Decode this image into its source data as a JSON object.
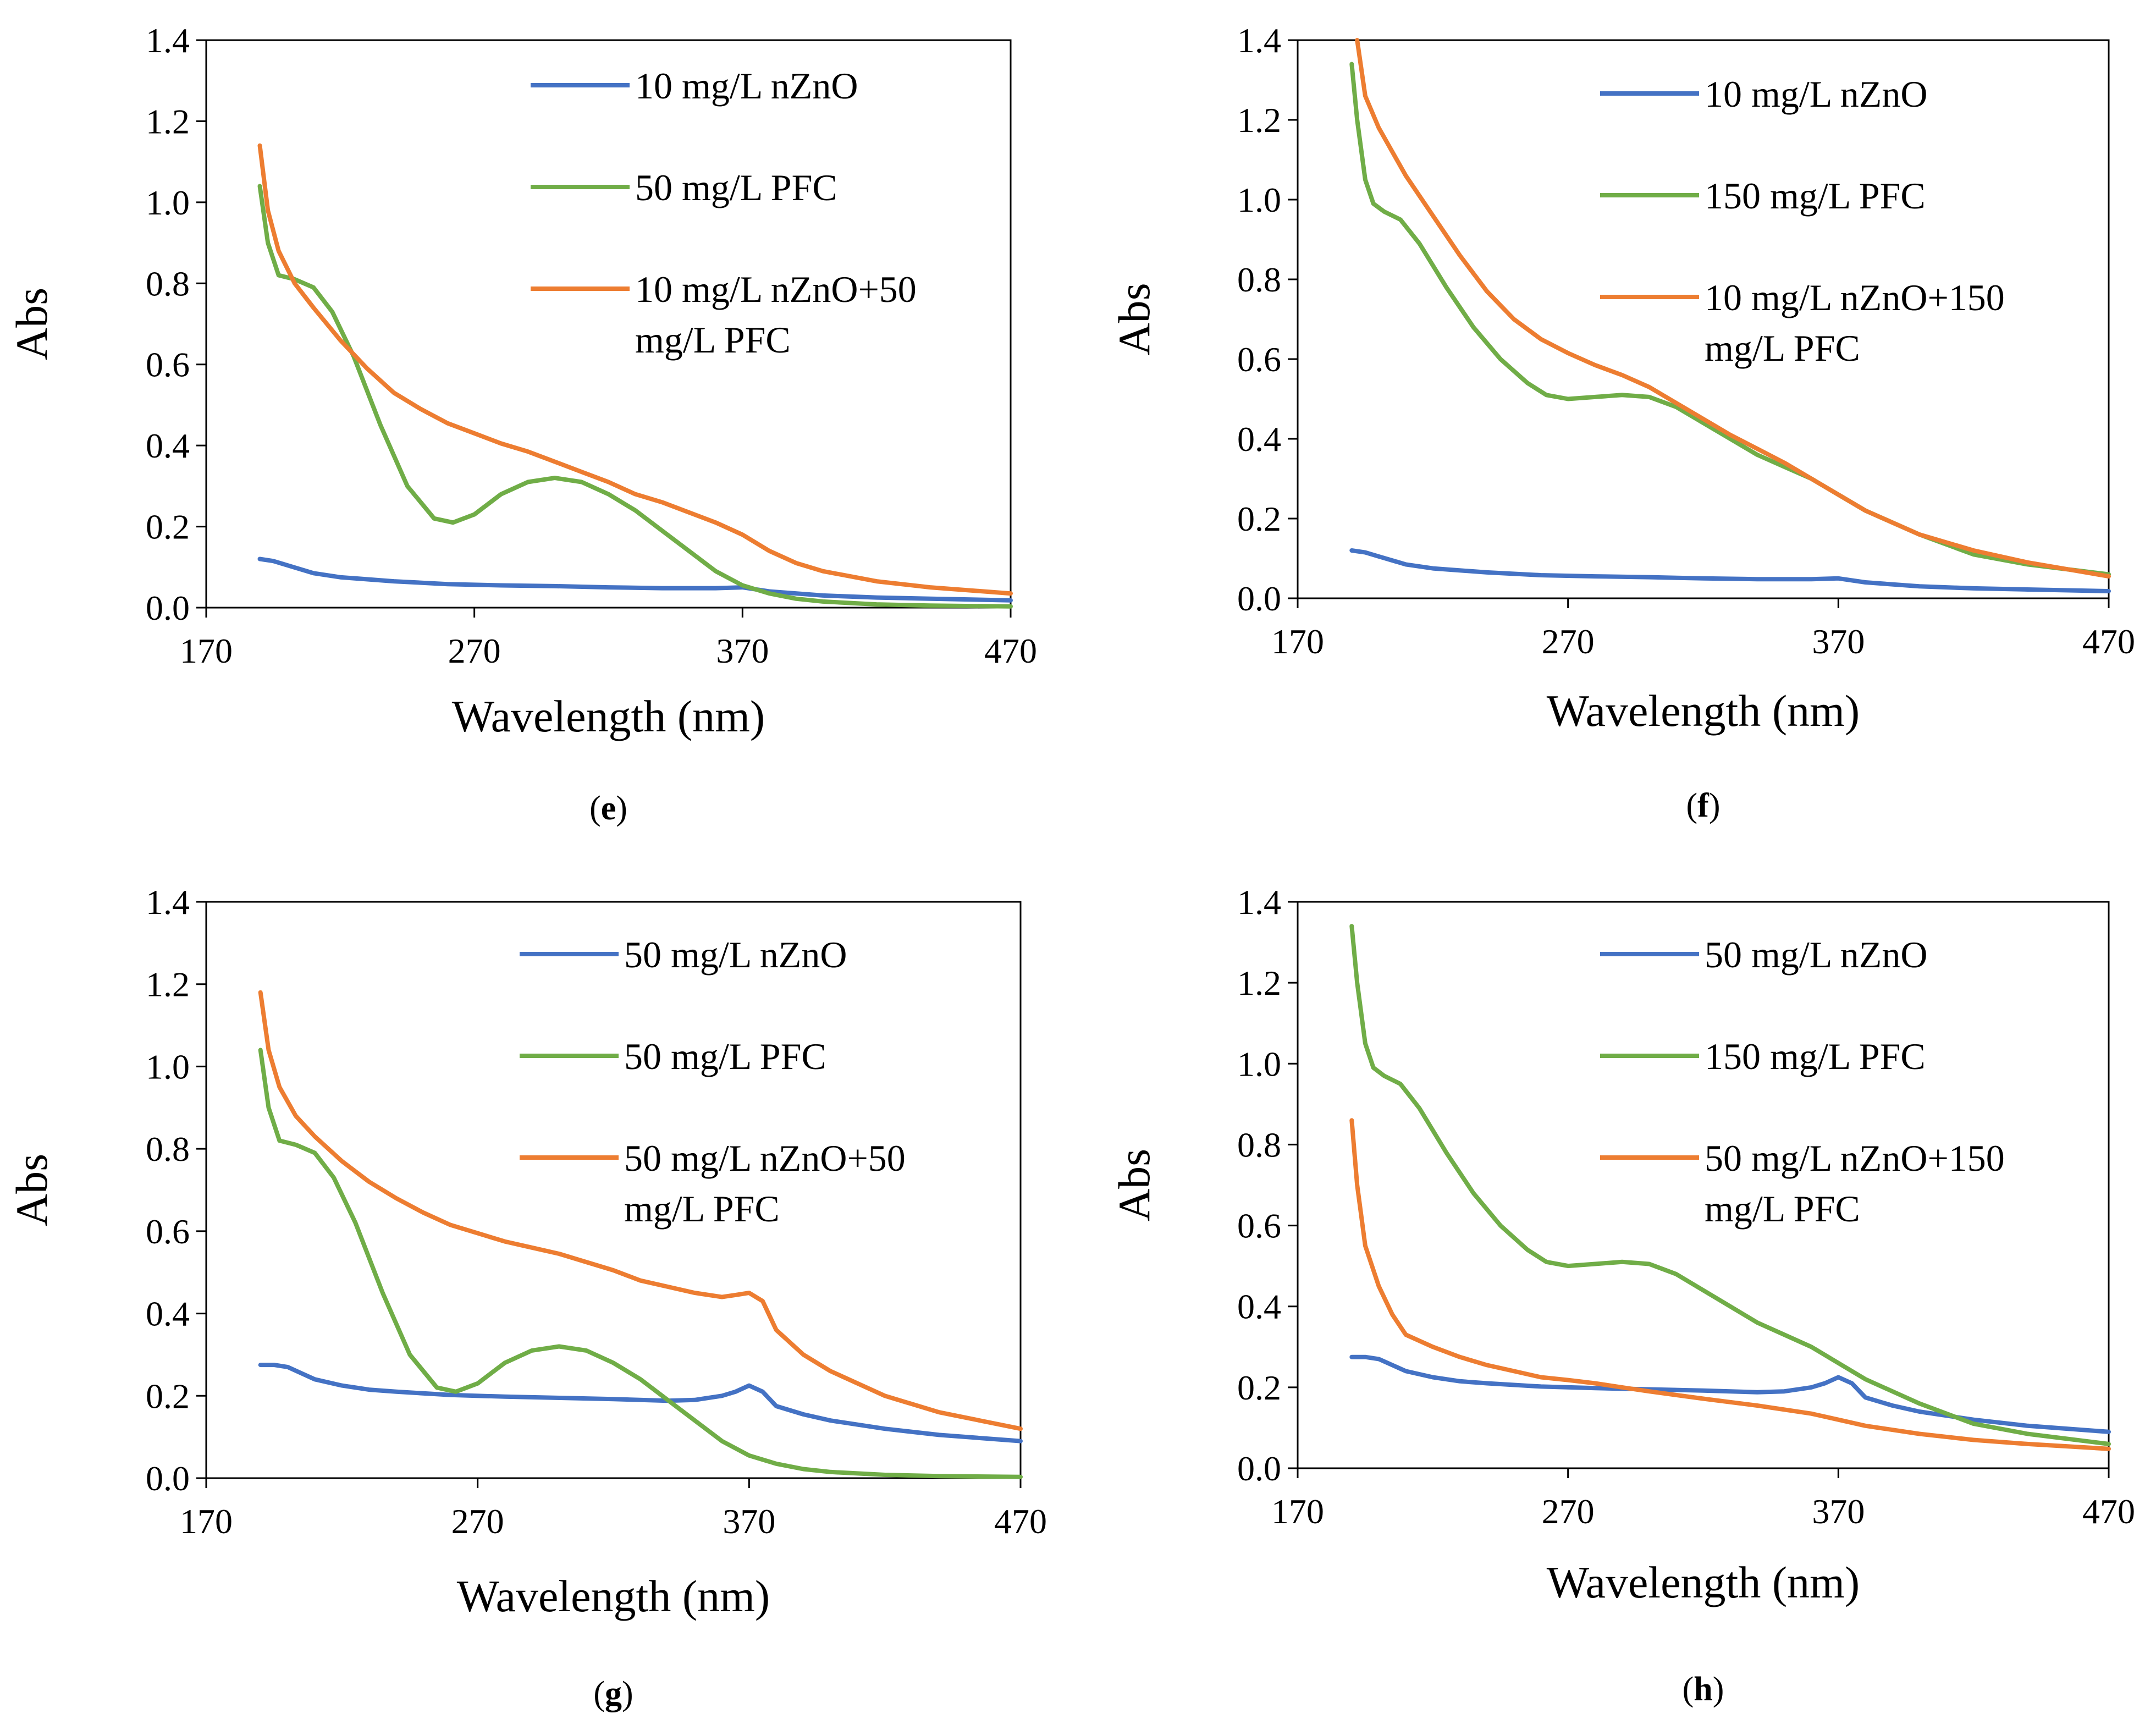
{
  "colors": {
    "blue": "#4472C4",
    "green": "#70AD47",
    "orange": "#ED7D31",
    "axis": "#000000"
  },
  "chart_data": [
    {
      "type": "line",
      "caption": "e",
      "xlabel": "Wavelength (nm)",
      "ylabel": "Abs",
      "xlim": [
        170,
        470
      ],
      "ylim": [
        0,
        1.4
      ],
      "xticks": [
        "170",
        "270",
        "370",
        "470"
      ],
      "yticks": [
        "0.0",
        "0.2",
        "0.4",
        "0.6",
        "0.8",
        "1.0",
        "1.2",
        "1.4"
      ],
      "legend_position": "top-right",
      "series": [
        {
          "name": "10 mg/L nZnO",
          "color": "#4472C4",
          "x": [
            190,
            195,
            200,
            210,
            220,
            240,
            260,
            280,
            300,
            320,
            340,
            360,
            370,
            380,
            400,
            420,
            440,
            470
          ],
          "y": [
            0.12,
            0.115,
            0.105,
            0.085,
            0.075,
            0.065,
            0.058,
            0.055,
            0.053,
            0.05,
            0.048,
            0.048,
            0.05,
            0.04,
            0.03,
            0.025,
            0.022,
            0.018
          ]
        },
        {
          "name": "50 mg/L PFC",
          "color": "#70AD47",
          "x": [
            190,
            193,
            197,
            203,
            210,
            217,
            225,
            235,
            245,
            255,
            262,
            270,
            280,
            290,
            300,
            310,
            320,
            330,
            340,
            350,
            360,
            370,
            380,
            390,
            400,
            420,
            440,
            470
          ],
          "y": [
            1.04,
            0.9,
            0.82,
            0.81,
            0.79,
            0.73,
            0.62,
            0.45,
            0.3,
            0.22,
            0.21,
            0.23,
            0.28,
            0.31,
            0.32,
            0.31,
            0.28,
            0.24,
            0.19,
            0.14,
            0.09,
            0.055,
            0.035,
            0.022,
            0.015,
            0.008,
            0.005,
            0.003
          ]
        },
        {
          "name": "10 mg/L nZnO+50 mg/L PFC",
          "color": "#ED7D31",
          "x": [
            190,
            193,
            197,
            203,
            210,
            220,
            230,
            240,
            250,
            260,
            270,
            280,
            290,
            300,
            310,
            320,
            330,
            340,
            350,
            360,
            370,
            380,
            390,
            400,
            420,
            440,
            470
          ],
          "y": [
            1.14,
            0.98,
            0.88,
            0.8,
            0.74,
            0.66,
            0.59,
            0.53,
            0.49,
            0.455,
            0.43,
            0.405,
            0.385,
            0.36,
            0.335,
            0.31,
            0.28,
            0.26,
            0.235,
            0.21,
            0.18,
            0.14,
            0.11,
            0.09,
            0.065,
            0.05,
            0.035
          ]
        }
      ],
      "legend_lines": [
        [
          "10 mg/L nZnO"
        ],
        [
          "50 mg/L PFC"
        ],
        [
          "10 mg/L nZnO+50",
          "mg/L PFC"
        ]
      ]
    },
    {
      "type": "line",
      "caption": "f",
      "xlabel": "Wavelength (nm)",
      "ylabel": "Abs",
      "xlim": [
        170,
        470
      ],
      "ylim": [
        0,
        1.4
      ],
      "xticks": [
        "170",
        "270",
        "370",
        "470"
      ],
      "yticks": [
        "0.0",
        "0.2",
        "0.4",
        "0.6",
        "0.8",
        "1.0",
        "1.2",
        "1.4"
      ],
      "legend_position": "top-right",
      "series": [
        {
          "name": "10 mg/L nZnO",
          "color": "#4472C4",
          "x": [
            190,
            195,
            200,
            210,
            220,
            240,
            260,
            280,
            300,
            320,
            340,
            360,
            370,
            380,
            400,
            420,
            440,
            470
          ],
          "y": [
            0.12,
            0.115,
            0.105,
            0.085,
            0.075,
            0.065,
            0.058,
            0.055,
            0.053,
            0.05,
            0.048,
            0.048,
            0.05,
            0.04,
            0.03,
            0.025,
            0.022,
            0.018
          ]
        },
        {
          "name": "150 mg/L PFC",
          "color": "#70AD47",
          "x": [
            190,
            192,
            195,
            198,
            202,
            208,
            215,
            225,
            235,
            245,
            255,
            262,
            270,
            280,
            290,
            300,
            310,
            320,
            330,
            340,
            350,
            360,
            370,
            380,
            400,
            420,
            440,
            470
          ],
          "y": [
            1.34,
            1.2,
            1.05,
            0.99,
            0.97,
            0.95,
            0.89,
            0.78,
            0.68,
            0.6,
            0.54,
            0.51,
            0.5,
            0.505,
            0.51,
            0.505,
            0.48,
            0.44,
            0.4,
            0.36,
            0.33,
            0.3,
            0.26,
            0.22,
            0.16,
            0.11,
            0.085,
            0.06
          ]
        },
        {
          "name": "10 mg/L nZnO+150 mg/L PFC",
          "color": "#ED7D31",
          "x": [
            192,
            195,
            200,
            210,
            220,
            230,
            240,
            250,
            260,
            270,
            280,
            290,
            300,
            310,
            320,
            330,
            340,
            350,
            360,
            370,
            380,
            390,
            400,
            420,
            440,
            470
          ],
          "y": [
            1.4,
            1.26,
            1.18,
            1.06,
            0.96,
            0.86,
            0.77,
            0.7,
            0.65,
            0.615,
            0.585,
            0.56,
            0.53,
            0.49,
            0.45,
            0.41,
            0.375,
            0.34,
            0.3,
            0.26,
            0.22,
            0.19,
            0.16,
            0.12,
            0.09,
            0.055
          ]
        }
      ],
      "legend_lines": [
        [
          "10 mg/L nZnO"
        ],
        [
          "150 mg/L PFC"
        ],
        [
          "10 mg/L nZnO+150",
          "mg/L PFC"
        ]
      ]
    },
    {
      "type": "line",
      "caption": "g",
      "xlabel": "Wavelength (nm)",
      "ylabel": "Abs",
      "xlim": [
        170,
        470
      ],
      "ylim": [
        0,
        1.4
      ],
      "xticks": [
        "170",
        "270",
        "370",
        "470"
      ],
      "yticks": [
        "0.0",
        "0.2",
        "0.4",
        "0.6",
        "0.8",
        "1.0",
        "1.2",
        "1.4"
      ],
      "legend_position": "top-right",
      "series": [
        {
          "name": "50 mg/L nZnO",
          "color": "#4472C4",
          "x": [
            190,
            195,
            200,
            205,
            210,
            220,
            230,
            240,
            260,
            280,
            300,
            320,
            340,
            350,
            360,
            365,
            370,
            375,
            380,
            390,
            400,
            420,
            440,
            470
          ],
          "y": [
            0.275,
            0.275,
            0.27,
            0.255,
            0.24,
            0.225,
            0.215,
            0.21,
            0.202,
            0.198,
            0.195,
            0.192,
            0.188,
            0.19,
            0.2,
            0.21,
            0.225,
            0.21,
            0.175,
            0.155,
            0.14,
            0.12,
            0.105,
            0.09
          ]
        },
        {
          "name": "50 mg/L PFC",
          "color": "#70AD47",
          "x": [
            190,
            193,
            197,
            203,
            210,
            217,
            225,
            235,
            245,
            255,
            262,
            270,
            280,
            290,
            300,
            310,
            320,
            330,
            340,
            350,
            360,
            370,
            380,
            390,
            400,
            420,
            440,
            470
          ],
          "y": [
            1.04,
            0.9,
            0.82,
            0.81,
            0.79,
            0.73,
            0.62,
            0.45,
            0.3,
            0.22,
            0.21,
            0.23,
            0.28,
            0.31,
            0.32,
            0.31,
            0.28,
            0.24,
            0.19,
            0.14,
            0.09,
            0.055,
            0.035,
            0.022,
            0.015,
            0.008,
            0.005,
            0.003
          ]
        },
        {
          "name": "50 mg/L nZnO+50 mg/L PFC",
          "color": "#ED7D31",
          "x": [
            190,
            193,
            197,
            203,
            210,
            220,
            230,
            240,
            250,
            260,
            270,
            280,
            290,
            300,
            310,
            320,
            330,
            340,
            350,
            360,
            365,
            370,
            375,
            380,
            390,
            400,
            420,
            440,
            470
          ],
          "y": [
            1.18,
            1.04,
            0.95,
            0.88,
            0.83,
            0.77,
            0.72,
            0.68,
            0.645,
            0.615,
            0.595,
            0.575,
            0.56,
            0.545,
            0.525,
            0.505,
            0.48,
            0.465,
            0.45,
            0.44,
            0.445,
            0.45,
            0.43,
            0.36,
            0.3,
            0.26,
            0.2,
            0.16,
            0.12
          ]
        }
      ],
      "legend_lines": [
        [
          "50 mg/L nZnO"
        ],
        [
          "50 mg/L PFC"
        ],
        [
          "50 mg/L nZnO+50",
          "mg/L PFC"
        ]
      ]
    },
    {
      "type": "line",
      "caption": "h",
      "xlabel": "Wavelength (nm)",
      "ylabel": "Abs",
      "xlim": [
        170,
        470
      ],
      "ylim": [
        0,
        1.4
      ],
      "xticks": [
        "170",
        "270",
        "370",
        "470"
      ],
      "yticks": [
        "0.0",
        "0.2",
        "0.4",
        "0.6",
        "0.8",
        "1.0",
        "1.2",
        "1.4"
      ],
      "legend_position": "top-right",
      "series": [
        {
          "name": "50 mg/L nZnO",
          "color": "#4472C4",
          "x": [
            190,
            195,
            200,
            205,
            210,
            220,
            230,
            240,
            260,
            280,
            300,
            320,
            340,
            350,
            360,
            365,
            370,
            375,
            380,
            390,
            400,
            420,
            440,
            470
          ],
          "y": [
            0.275,
            0.275,
            0.27,
            0.255,
            0.24,
            0.225,
            0.215,
            0.21,
            0.202,
            0.198,
            0.195,
            0.192,
            0.188,
            0.19,
            0.2,
            0.21,
            0.225,
            0.21,
            0.175,
            0.155,
            0.14,
            0.12,
            0.105,
            0.09
          ]
        },
        {
          "name": "150 mg/L PFC",
          "color": "#70AD47",
          "x": [
            190,
            192,
            195,
            198,
            202,
            208,
            215,
            225,
            235,
            245,
            255,
            262,
            270,
            280,
            290,
            300,
            310,
            320,
            330,
            340,
            350,
            360,
            370,
            380,
            400,
            420,
            440,
            470
          ],
          "y": [
            1.34,
            1.2,
            1.05,
            0.99,
            0.97,
            0.95,
            0.89,
            0.78,
            0.68,
            0.6,
            0.54,
            0.51,
            0.5,
            0.505,
            0.51,
            0.505,
            0.48,
            0.44,
            0.4,
            0.36,
            0.33,
            0.3,
            0.26,
            0.22,
            0.16,
            0.11,
            0.085,
            0.06
          ]
        },
        {
          "name": "50 mg/L nZnO+150 mg/L PFC",
          "color": "#ED7D31",
          "x": [
            190,
            192,
            195,
            200,
            205,
            210,
            220,
            230,
            240,
            250,
            260,
            270,
            280,
            290,
            300,
            320,
            340,
            360,
            370,
            380,
            400,
            420,
            440,
            470
          ],
          "y": [
            0.86,
            0.7,
            0.55,
            0.45,
            0.38,
            0.33,
            0.3,
            0.275,
            0.255,
            0.24,
            0.225,
            0.218,
            0.21,
            0.2,
            0.19,
            0.172,
            0.155,
            0.135,
            0.12,
            0.105,
            0.085,
            0.07,
            0.06,
            0.048
          ]
        }
      ],
      "legend_lines": [
        [
          "50 mg/L nZnO"
        ],
        [
          "150 mg/L PFC"
        ],
        [
          "50 mg/L nZnO+150",
          "mg/L PFC"
        ]
      ]
    }
  ]
}
